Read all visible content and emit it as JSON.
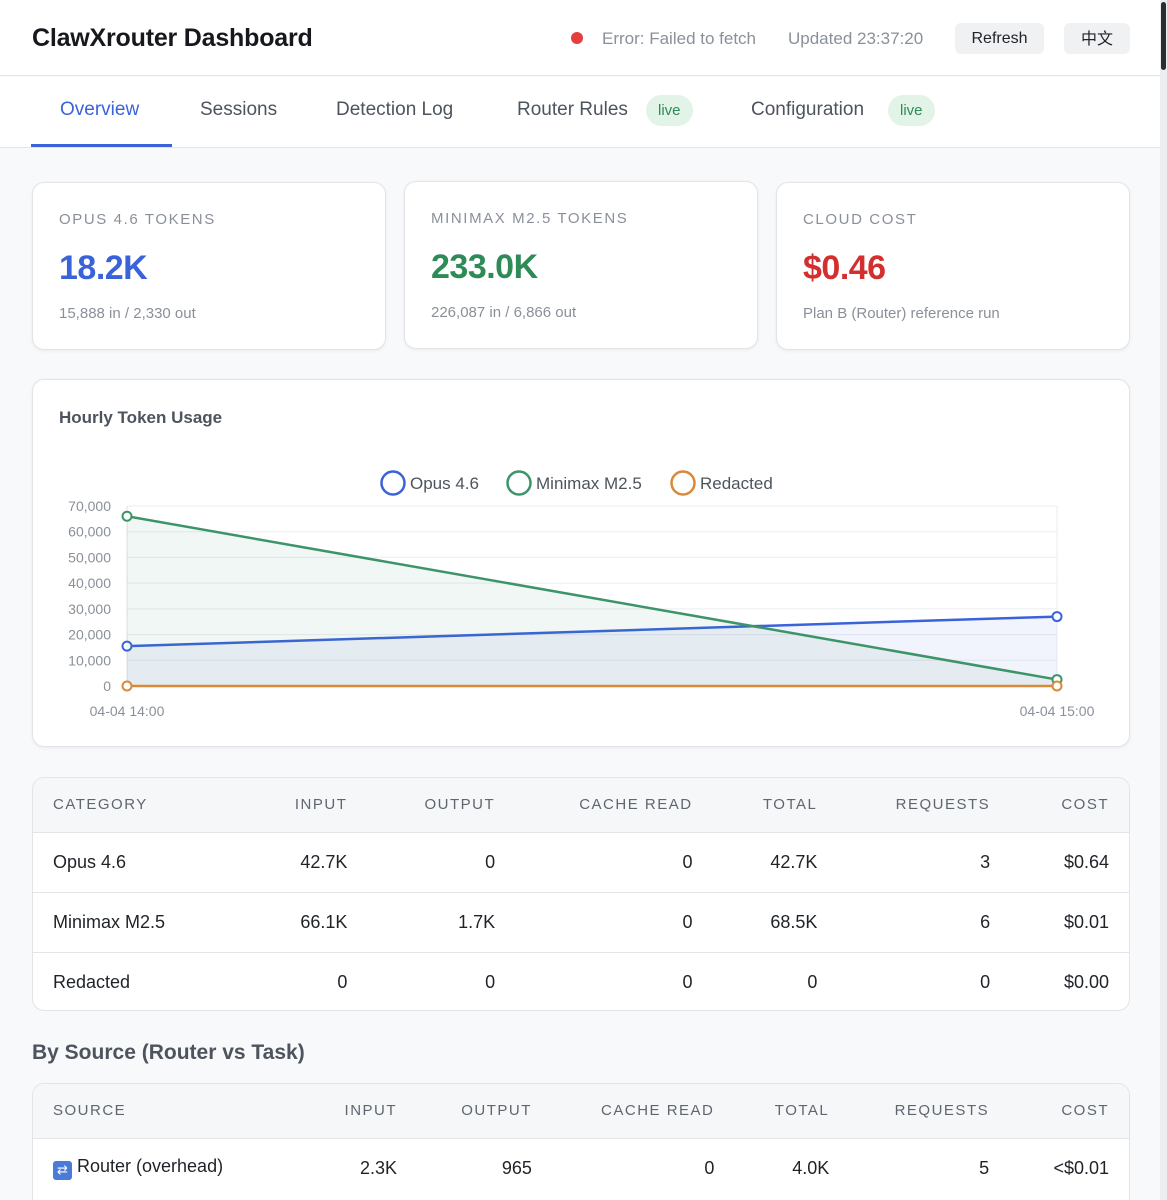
{
  "header": {
    "title": "ClawXrouter Dashboard",
    "status_text": "Error: Failed to fetch",
    "updated_text": "Updated 23:37:20",
    "refresh_label": "Refresh",
    "language_label": "中文",
    "status_color": "#e53e3e"
  },
  "tabs": [
    {
      "label": "Overview",
      "active": true
    },
    {
      "label": "Sessions"
    },
    {
      "label": "Detection Log"
    },
    {
      "label": "Router Rules",
      "badge": "live"
    },
    {
      "label": "Configuration",
      "badge": "live"
    }
  ],
  "stats": [
    {
      "label": "OPUS 4.6 TOKENS",
      "value": "18.2K",
      "sub": "15,888 in / 2,330 out",
      "color": "#3b63d9"
    },
    {
      "label": "MINIMAX M2.5 TOKENS",
      "value": "233.0K",
      "sub": "226,087 in / 6,866 out",
      "color": "#2e8b57"
    },
    {
      "label": "CLOUD COST",
      "value": "$0.46",
      "sub": "Plan B (Router) reference run",
      "color": "#d32f2f"
    }
  ],
  "chart_data": {
    "type": "line",
    "title": "Hourly Token Usage",
    "x": [
      "04-04 14:00",
      "04-04 15:00"
    ],
    "series": [
      {
        "name": "Opus 4.6",
        "values": [
          15500,
          27000
        ],
        "color": "#3b63d9"
      },
      {
        "name": "Minimax M2.5",
        "values": [
          66000,
          2500
        ],
        "color": "#3d9468"
      },
      {
        "name": "Redacted",
        "values": [
          0,
          0
        ],
        "color": "#d88a3a"
      }
    ],
    "ylim": [
      0,
      70000
    ],
    "yticks": [
      "70,000",
      "60,000",
      "50,000",
      "40,000",
      "30,000",
      "20,000",
      "10,000",
      "0"
    ],
    "legend": "top-center",
    "grid": true
  },
  "category_table": {
    "headers": [
      "CATEGORY",
      "INPUT",
      "OUTPUT",
      "CACHE READ",
      "TOTAL",
      "REQUESTS",
      "COST"
    ],
    "rows": [
      [
        "Opus 4.6",
        "42.7K",
        "0",
        "0",
        "42.7K",
        "3",
        "$0.64"
      ],
      [
        "Minimax M2.5",
        "66.1K",
        "1.7K",
        "0",
        "68.5K",
        "6",
        "$0.01"
      ],
      [
        "Redacted",
        "0",
        "0",
        "0",
        "0",
        "0",
        "$0.00"
      ]
    ]
  },
  "source_section": {
    "title": "By Source (Router vs Task)",
    "headers": [
      "SOURCE",
      "INPUT",
      "OUTPUT",
      "CACHE READ",
      "TOTAL",
      "REQUESTS",
      "COST"
    ],
    "rows": [
      {
        "icon": "shuffle-icon",
        "glyph": "⇄",
        "source": "Router (overhead)",
        "input": "2.3K",
        "output": "965",
        "cache_read": "0",
        "total": "4.0K",
        "requests": "5",
        "cost": "<$0.01"
      }
    ]
  }
}
